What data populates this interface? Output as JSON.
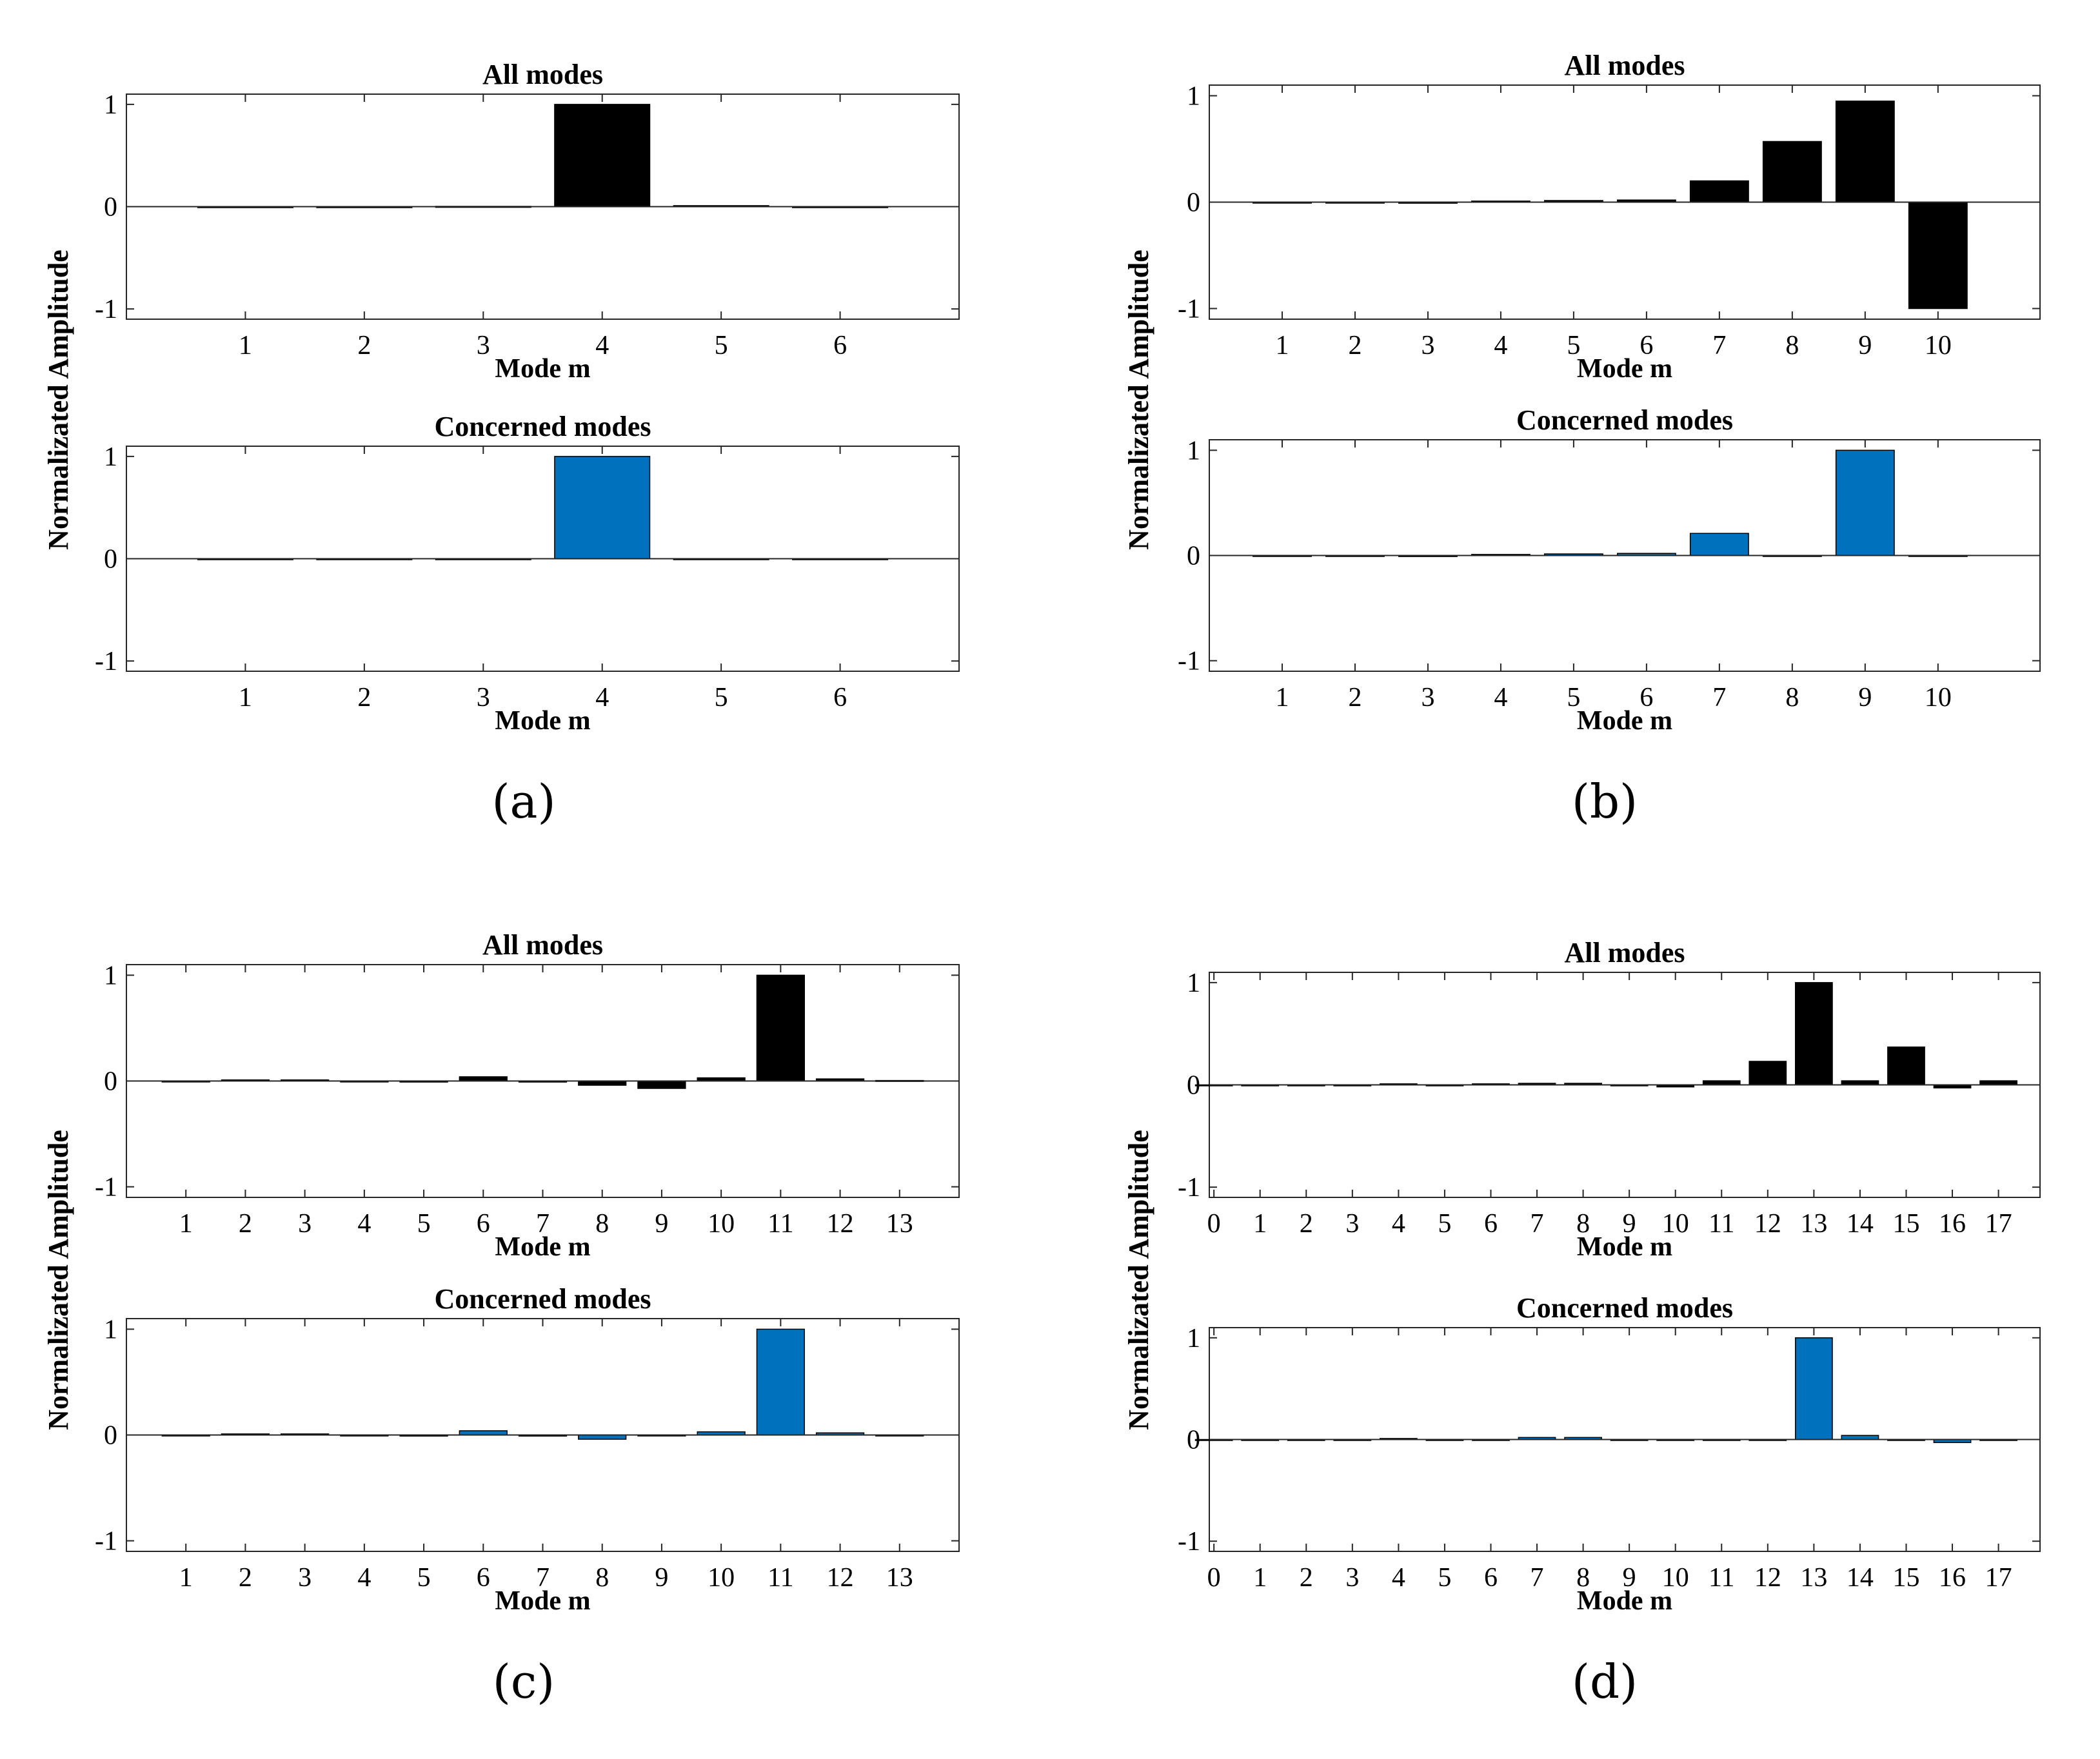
{
  "figure": {
    "y_axis_label": "Normalizated Amplitude",
    "x_axis_label": "Mode m",
    "colors": {
      "all_modes_bar": "#000000",
      "concerned_modes_bar": "#0072BD",
      "axis": "#262626",
      "background": "#ffffff"
    }
  },
  "chart_data": [
    {
      "panel_label": "(a)",
      "type": "bar",
      "title": "All modes",
      "series_color": "#000000",
      "xlabel": "Mode m",
      "ylabel": "Normalizated Amplitude",
      "ylim": [
        -1.1,
        1.1
      ],
      "yticks": [
        "-1",
        "0",
        "1"
      ],
      "xlim": [
        0.0,
        7.0
      ],
      "categories": [
        "1",
        "2",
        "3",
        "4",
        "5",
        "6"
      ],
      "x": [
        1,
        2,
        3,
        4,
        5,
        6
      ],
      "values": [
        0.0,
        0.0,
        0.003,
        1.0,
        0.01,
        -0.005
      ]
    },
    {
      "panel_label": "(a)",
      "type": "bar",
      "title": "Concerned modes",
      "series_color": "#0072BD",
      "xlabel": "Mode m",
      "ylabel": "Normalizated Amplitude",
      "ylim": [
        -1.1,
        1.1
      ],
      "yticks": [
        "-1",
        "0",
        "1"
      ],
      "xlim": [
        0.0,
        7.0
      ],
      "categories": [
        "1",
        "2",
        "3",
        "4",
        "5",
        "6"
      ],
      "x": [
        1,
        2,
        3,
        4,
        5,
        6
      ],
      "values": [
        0.0,
        0.0,
        0.0,
        1.0,
        0.0,
        0.0
      ]
    },
    {
      "panel_label": "(b)",
      "type": "bar",
      "title": "All modes",
      "series_color": "#000000",
      "xlabel": "Mode m",
      "ylabel": "Normalizated Amplitude",
      "ylim": [
        -1.1,
        1.1
      ],
      "yticks": [
        "-1",
        "0",
        "1"
      ],
      "xlim": [
        0.0,
        11.4
      ],
      "categories": [
        "1",
        "2",
        "3",
        "4",
        "5",
        "6",
        "7",
        "8",
        "9",
        "10"
      ],
      "x": [
        1,
        2,
        3,
        4,
        5,
        6,
        7,
        8,
        9,
        10
      ],
      "values": [
        0.0,
        0.0,
        -0.01,
        0.01,
        0.015,
        0.02,
        0.2,
        0.57,
        0.95,
        -1.0
      ]
    },
    {
      "panel_label": "(b)",
      "type": "bar",
      "title": "Concerned modes",
      "series_color": "#0072BD",
      "xlabel": "Mode m",
      "ylabel": "Normalizated Amplitude",
      "ylim": [
        -1.1,
        1.1
      ],
      "yticks": [
        "-1",
        "0",
        "1"
      ],
      "xlim": [
        0.0,
        11.4
      ],
      "categories": [
        "1",
        "2",
        "3",
        "4",
        "5",
        "6",
        "7",
        "8",
        "9",
        "10"
      ],
      "x": [
        1,
        2,
        3,
        4,
        5,
        6,
        7,
        8,
        9,
        10
      ],
      "values": [
        0.0,
        0.0,
        -0.01,
        0.01,
        0.015,
        0.02,
        0.21,
        0.0,
        1.0,
        0.0
      ]
    },
    {
      "panel_label": "(c)",
      "type": "bar",
      "title": "All modes",
      "series_color": "#000000",
      "xlabel": "Mode m",
      "ylabel": "Normalizated Amplitude",
      "ylim": [
        -1.1,
        1.1
      ],
      "yticks": [
        "-1",
        "0",
        "1"
      ],
      "xlim": [
        0.0,
        14.0
      ],
      "categories": [
        "1",
        "2",
        "3",
        "4",
        "5",
        "6",
        "7",
        "8",
        "9",
        "10",
        "11",
        "12",
        "13"
      ],
      "x": [
        1,
        2,
        3,
        4,
        5,
        6,
        7,
        8,
        9,
        10,
        11,
        12,
        13
      ],
      "values": [
        0.0,
        0.01,
        0.01,
        0.0,
        -0.01,
        0.04,
        -0.01,
        -0.04,
        -0.07,
        0.03,
        1.0,
        0.02,
        0.005
      ]
    },
    {
      "panel_label": "(c)",
      "type": "bar",
      "title": "Concerned modes",
      "series_color": "#0072BD",
      "xlabel": "Mode m",
      "ylabel": "Normalizated Amplitude",
      "ylim": [
        -1.1,
        1.1
      ],
      "yticks": [
        "-1",
        "0",
        "1"
      ],
      "xlim": [
        0.0,
        14.0
      ],
      "categories": [
        "1",
        "2",
        "3",
        "4",
        "5",
        "6",
        "7",
        "8",
        "9",
        "10",
        "11",
        "12",
        "13"
      ],
      "x": [
        1,
        2,
        3,
        4,
        5,
        6,
        7,
        8,
        9,
        10,
        11,
        12,
        13
      ],
      "values": [
        0.0,
        0.01,
        0.01,
        0.0,
        -0.01,
        0.04,
        -0.01,
        -0.04,
        0.0,
        0.03,
        1.0,
        0.02,
        0.0
      ]
    },
    {
      "panel_label": "(d)",
      "type": "bar",
      "title": "All modes",
      "series_color": "#000000",
      "xlabel": "Mode m",
      "ylabel": "Normalizated Amplitude",
      "ylim": [
        -1.1,
        1.1
      ],
      "yticks": [
        "-1",
        "0",
        "1"
      ],
      "xlim": [
        -0.1,
        17.9
      ],
      "categories": [
        "0",
        "1",
        "2",
        "3",
        "4",
        "5",
        "6",
        "7",
        "8",
        "9",
        "10",
        "11",
        "12",
        "13",
        "14",
        "15",
        "16",
        "17"
      ],
      "x": [
        0,
        1,
        2,
        3,
        4,
        5,
        6,
        7,
        8,
        9,
        10,
        11,
        12,
        13,
        14,
        15,
        16,
        17
      ],
      "values": [
        0.0,
        0.0,
        0.0,
        0.0,
        0.01,
        0.0,
        0.01,
        0.015,
        0.015,
        0.0,
        -0.02,
        0.04,
        0.23,
        1.0,
        0.04,
        0.37,
        -0.03,
        0.04
      ]
    },
    {
      "panel_label": "(d)",
      "type": "bar",
      "title": "Concerned modes",
      "series_color": "#0072BD",
      "xlabel": "Mode m",
      "ylabel": "Normalizated Amplitude",
      "ylim": [
        -1.1,
        1.1
      ],
      "yticks": [
        "-1",
        "0",
        "1"
      ],
      "xlim": [
        -0.1,
        17.9
      ],
      "categories": [
        "0",
        "1",
        "2",
        "3",
        "4",
        "5",
        "6",
        "7",
        "8",
        "9",
        "10",
        "11",
        "12",
        "13",
        "14",
        "15",
        "16",
        "17"
      ],
      "x": [
        0,
        1,
        2,
        3,
        4,
        5,
        6,
        7,
        8,
        9,
        10,
        11,
        12,
        13,
        14,
        15,
        16,
        17
      ],
      "values": [
        0.0,
        0.0,
        0.0,
        0.0,
        0.01,
        0.0,
        0.0,
        0.02,
        0.02,
        0.0,
        0.0,
        0.0,
        0.0,
        1.0,
        0.04,
        0.0,
        -0.03,
        0.0
      ]
    }
  ]
}
